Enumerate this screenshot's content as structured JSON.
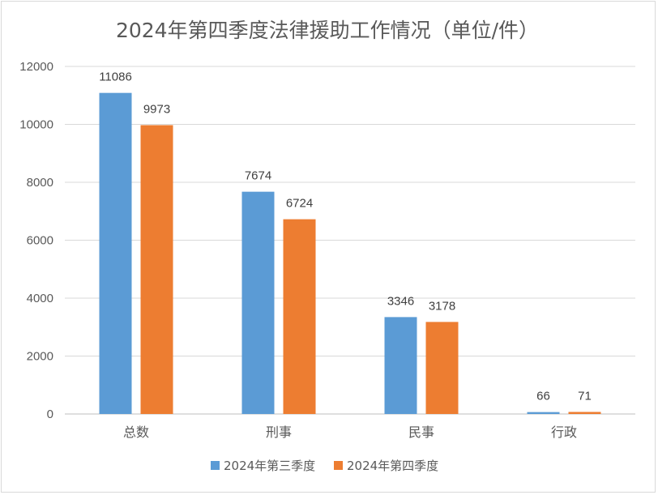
{
  "chart_data": {
    "type": "bar",
    "title": "2024年第四季度法律援助工作情况（单位/件）",
    "categories": [
      "总数",
      "刑事",
      "民事",
      "行政"
    ],
    "series": [
      {
        "name": "2024年第三季度",
        "color": "#5b9bd5",
        "values": [
          11086,
          7674,
          3346,
          66
        ]
      },
      {
        "name": "2024年第四季度",
        "color": "#ed7d31",
        "values": [
          9973,
          6724,
          3178,
          71
        ]
      }
    ],
    "ylim": [
      0,
      12000
    ],
    "yticks": [
      "0",
      "2000",
      "4000",
      "6000",
      "8000",
      "10000",
      "12000"
    ],
    "grid": true,
    "legend": "bottom"
  }
}
